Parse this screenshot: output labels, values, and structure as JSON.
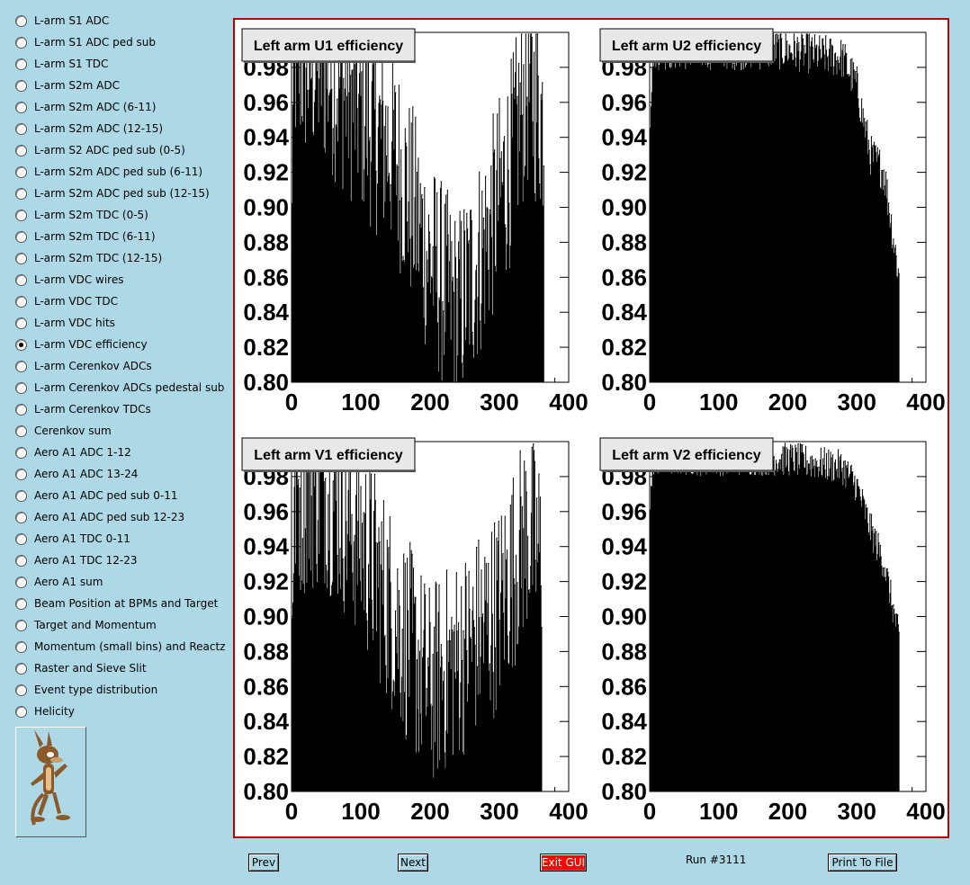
{
  "sidebar": {
    "items": [
      {
        "label": "L-arm S1 ADC",
        "checked": false
      },
      {
        "label": "L-arm S1 ADC ped sub",
        "checked": false
      },
      {
        "label": "L-arm S1 TDC",
        "checked": false
      },
      {
        "label": "L-arm S2m ADC",
        "checked": false
      },
      {
        "label": "L-arm S2m ADC (6-11)",
        "checked": false
      },
      {
        "label": "L-arm S2m ADC (12-15)",
        "checked": false
      },
      {
        "label": "L-arm S2 ADC ped sub (0-5)",
        "checked": false
      },
      {
        "label": "L-arm S2m ADC ped sub (6-11)",
        "checked": false
      },
      {
        "label": "L-arm S2m ADC ped sub (12-15)",
        "checked": false
      },
      {
        "label": "L-arm S2m TDC (0-5)",
        "checked": false
      },
      {
        "label": "L-arm S2m TDC (6-11)",
        "checked": false
      },
      {
        "label": "L-arm S2m TDC (12-15)",
        "checked": false
      },
      {
        "label": "L-arm VDC wires",
        "checked": false
      },
      {
        "label": "L-arm VDC TDC",
        "checked": false
      },
      {
        "label": "L-arm VDC hits",
        "checked": false
      },
      {
        "label": "L-arm VDC efficiency",
        "checked": true
      },
      {
        "label": "L-arm Cerenkov ADCs",
        "checked": false
      },
      {
        "label": "L-arm Cerenkov ADCs pedestal sub",
        "checked": false
      },
      {
        "label": "L-arm Cerenkov TDCs",
        "checked": false
      },
      {
        "label": "Cerenkov sum",
        "checked": false
      },
      {
        "label": "Aero A1 ADC 1-12",
        "checked": false
      },
      {
        "label": "Aero A1 ADC 13-24",
        "checked": false
      },
      {
        "label": "Aero A1 ADC ped sub 0-11",
        "checked": false
      },
      {
        "label": "Aero A1 ADC ped sub 12-23",
        "checked": false
      },
      {
        "label": "Aero A1 TDC 0-11",
        "checked": false
      },
      {
        "label": "Aero A1 TDC 12-23",
        "checked": false
      },
      {
        "label": "Aero A1 sum",
        "checked": false
      },
      {
        "label": "Beam Position at BPMs and Target",
        "checked": false
      },
      {
        "label": "Target and Momentum",
        "checked": false
      },
      {
        "label": "Momentum (small bins) and Reactz",
        "checked": false
      },
      {
        "label": "Raster and Sieve Slit",
        "checked": false
      },
      {
        "label": "Event type distribution",
        "checked": false
      },
      {
        "label": "Helicity",
        "checked": false
      }
    ]
  },
  "buttons": {
    "prev": "Prev",
    "next": "Next",
    "exit": "Exit GUI",
    "print": "Print To File"
  },
  "run_label": "Run #3111",
  "colors": {
    "exit_button": "#ff0000",
    "frame_border": "#c00000",
    "background": "#add8e6"
  },
  "chart_data": [
    {
      "type": "bar",
      "title": "Left arm U1 efficiency",
      "xlim": [
        0,
        400
      ],
      "ylim": [
        0.8,
        1.0
      ],
      "xticks": [
        "0",
        "100",
        "200",
        "300",
        "400"
      ],
      "yticks": [
        "0.80",
        "0.82",
        "0.84",
        "0.86",
        "0.88",
        "0.90",
        "0.92",
        "0.94",
        "0.96",
        "0.98"
      ],
      "profile": {
        "x": [
          0,
          5,
          50,
          100,
          150,
          200,
          240,
          280,
          320,
          340,
          365,
          400
        ],
        "y": [
          0.9,
          0.985,
          0.98,
          0.955,
          0.93,
          0.87,
          0.84,
          0.88,
          0.93,
          0.97,
          0.95,
          0.8
        ]
      },
      "noise": 0.06,
      "x_end": 365
    },
    {
      "type": "bar",
      "title": "Left arm U2 efficiency",
      "xlim": [
        0,
        400
      ],
      "ylim": [
        0.8,
        1.0
      ],
      "xticks": [
        "0",
        "100",
        "200",
        "300",
        "400"
      ],
      "yticks": [
        "0.80",
        "0.82",
        "0.84",
        "0.86",
        "0.88",
        "0.90",
        "0.92",
        "0.94",
        "0.96",
        "0.98"
      ],
      "profile": {
        "x": [
          0,
          5,
          50,
          100,
          200,
          280,
          300,
          320,
          340,
          365,
          400
        ],
        "y": [
          0.94,
          0.99,
          0.99,
          0.99,
          0.99,
          0.985,
          0.97,
          0.93,
          0.92,
          0.85,
          0.8
        ]
      },
      "noise": 0.012,
      "x_end": 362
    },
    {
      "type": "bar",
      "title": "Left arm V1 efficiency",
      "xlim": [
        0,
        400
      ],
      "ylim": [
        0.8,
        1.0
      ],
      "xticks": [
        "0",
        "100",
        "200",
        "300",
        "400"
      ],
      "yticks": [
        "0.80",
        "0.82",
        "0.84",
        "0.86",
        "0.88",
        "0.90",
        "0.92",
        "0.94",
        "0.96",
        "0.98"
      ],
      "profile": {
        "x": [
          0,
          5,
          50,
          100,
          150,
          200,
          250,
          300,
          340,
          365,
          400
        ],
        "y": [
          0.9,
          0.97,
          0.975,
          0.945,
          0.9,
          0.86,
          0.88,
          0.905,
          0.95,
          0.93,
          0.8
        ]
      },
      "noise": 0.06,
      "x_end": 362
    },
    {
      "type": "bar",
      "title": "Left arm V2 efficiency",
      "xlim": [
        0,
        400
      ],
      "ylim": [
        0.8,
        1.0
      ],
      "xticks": [
        "0",
        "100",
        "200",
        "300",
        "400"
      ],
      "yticks": [
        "0.80",
        "0.82",
        "0.84",
        "0.86",
        "0.88",
        "0.90",
        "0.92",
        "0.94",
        "0.96",
        "0.98"
      ],
      "profile": {
        "x": [
          0,
          5,
          50,
          100,
          200,
          280,
          300,
          320,
          340,
          365,
          400
        ],
        "y": [
          0.95,
          0.99,
          0.99,
          0.99,
          0.99,
          0.985,
          0.975,
          0.95,
          0.93,
          0.88,
          0.8
        ]
      },
      "noise": 0.01,
      "x_end": 362
    }
  ]
}
